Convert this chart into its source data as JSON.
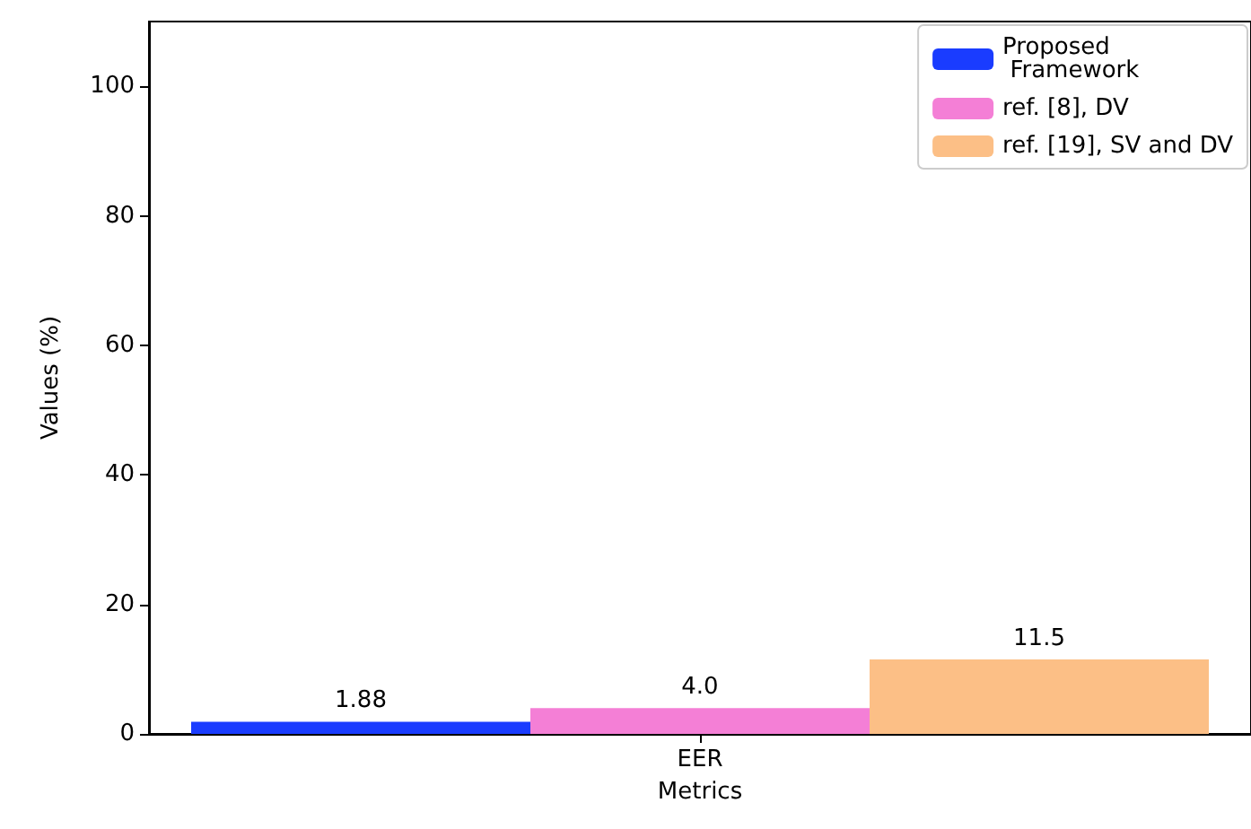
{
  "chart_data": {
    "type": "bar",
    "xlabel": "Metrics",
    "ylabel": "Values (%)",
    "categories": [
      "EER"
    ],
    "series": [
      {
        "name": "Proposed\n Framework",
        "color": "#1a3cff",
        "values": [
          1.88
        ],
        "value_labels": [
          "1.88"
        ]
      },
      {
        "name": "ref. [8], DV",
        "color": "#f47fd6",
        "values": [
          4.0
        ],
        "value_labels": [
          "4.0"
        ]
      },
      {
        "name": "ref. [19], SV and DV",
        "color": "#fcbf86",
        "values": [
          11.5
        ],
        "value_labels": [
          "11.5"
        ]
      }
    ],
    "ylim": [
      0,
      110
    ],
    "yticks": [
      0,
      20,
      40,
      60,
      80,
      100
    ],
    "legend": "top right",
    "grid": false
  }
}
